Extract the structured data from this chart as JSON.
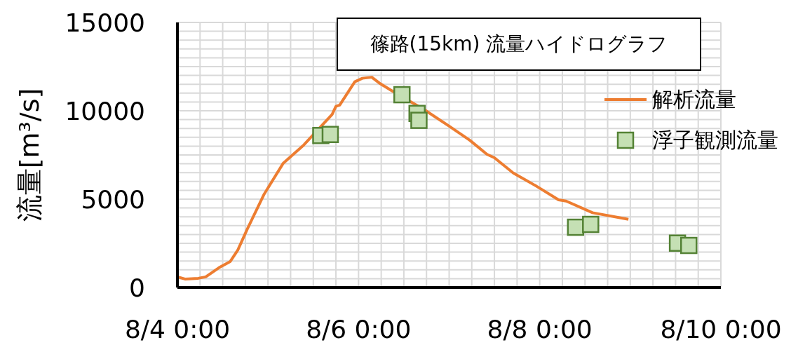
{
  "chart_data": {
    "type": "line",
    "title": "篠路(15km) 流量ハイドログラフ",
    "ylabel": "流量[m³/s]",
    "xlim": [
      "--08-04T00:00",
      "--08-10T00:00"
    ],
    "xticks": [
      {
        "value": "--08-04T00:00",
        "label": "8/4 0:00"
      },
      {
        "value": "--08-04T06:00",
        "label": null
      },
      {
        "value": "--08-04T12:00",
        "label": null
      },
      {
        "value": "--08-04T18:00",
        "label": null
      },
      {
        "value": "--08-05T00:00",
        "label": null
      },
      {
        "value": "--08-05T06:00",
        "label": null
      },
      {
        "value": "--08-05T12:00",
        "label": null
      },
      {
        "value": "--08-05T18:00",
        "label": null
      },
      {
        "value": "--08-06T00:00",
        "label": "8/6 0:00"
      },
      {
        "value": "--08-06T06:00",
        "label": null
      },
      {
        "value": "--08-06T12:00",
        "label": null
      },
      {
        "value": "--08-06T18:00",
        "label": null
      },
      {
        "value": "--08-07T00:00",
        "label": null
      },
      {
        "value": "--08-07T06:00",
        "label": null
      },
      {
        "value": "--08-07T12:00",
        "label": null
      },
      {
        "value": "--08-07T18:00",
        "label": null
      },
      {
        "value": "--08-08T00:00",
        "label": "8/8 0:00"
      },
      {
        "value": "--08-08T06:00",
        "label": null
      },
      {
        "value": "--08-08T12:00",
        "label": null
      },
      {
        "value": "--08-08T18:00",
        "label": null
      },
      {
        "value": "--08-09T00:00",
        "label": null
      },
      {
        "value": "--08-09T06:00",
        "label": null
      },
      {
        "value": "--08-09T12:00",
        "label": null
      },
      {
        "value": "--08-09T18:00",
        "label": null
      },
      {
        "value": "--08-10T00:00",
        "label": "8/10 0:00"
      }
    ],
    "ylim": [
      0,
      15000
    ],
    "yticks": [
      0,
      {
        "value": 500,
        "label": null
      },
      {
        "value": 1000,
        "label": null
      },
      {
        "value": 1500,
        "label": null
      },
      {
        "value": 2000,
        "label": null
      },
      {
        "value": 2500,
        "label": null
      },
      {
        "value": 3000,
        "label": null
      },
      {
        "value": 3500,
        "label": null
      },
      {
        "value": 4000,
        "label": null
      },
      {
        "value": 4500,
        "label": null
      },
      5000,
      {
        "value": 5500,
        "label": null
      },
      {
        "value": 6000,
        "label": null
      },
      {
        "value": 6500,
        "label": null
      },
      {
        "value": 7000,
        "label": null
      },
      {
        "value": 7500,
        "label": null
      },
      {
        "value": 8000,
        "label": null
      },
      {
        "value": 8500,
        "label": null
      },
      {
        "value": 9000,
        "label": null
      },
      {
        "value": 9500,
        "label": null
      },
      10000,
      {
        "value": 10500,
        "label": null
      },
      {
        "value": 11000,
        "label": null
      },
      {
        "value": 11500,
        "label": null
      },
      {
        "value": 12000,
        "label": null
      },
      {
        "value": 12500,
        "label": null
      },
      {
        "value": 13000,
        "label": null
      },
      {
        "value": 13500,
        "label": null
      },
      {
        "value": 14000,
        "label": null
      },
      {
        "value": 14500,
        "label": null
      },
      15000
    ],
    "grid": true,
    "legend": "top right",
    "series": [
      {
        "name": "解析流量",
        "color": "#ed7d31",
        "marker": "none",
        "line_style": "solid",
        "x": [
          "--08-04T00:00",
          "--08-04T02:00",
          "--08-04T05:30",
          "--08-04T07:30",
          "--08-04T11:00",
          "--08-04T14:00",
          "--08-04T16:00",
          "--08-04T18:30",
          "--08-04T23:00",
          "--08-05T04:00",
          "--08-05T09:30",
          "--08-05T17:00",
          "--08-05T18:00",
          "--08-05T19:00",
          "--08-05T23:00",
          "--08-06T01:00",
          "--08-06T03:30",
          "--08-06T05:30",
          "--08-06T09:00",
          "--08-06T17:30",
          "--08-07T00:00",
          "--08-07T05:30",
          "--08-07T10:00",
          "--08-07T12:00",
          "--08-07T17:00",
          "--08-07T23:00",
          "--08-08T00:00",
          "--08-08T05:00",
          "--08-08T07:00",
          "--08-08T14:00",
          "--08-08T23:30"
        ],
        "values": [
          600,
          480,
          520,
          600,
          1120,
          1470,
          2120,
          3300,
          5290,
          7020,
          8070,
          9800,
          10250,
          10320,
          11640,
          11840,
          11900,
          11570,
          11110,
          10050,
          9130,
          8330,
          7540,
          7340,
          6480,
          5750,
          5620,
          4960,
          4890,
          4230,
          3860
        ]
      },
      {
        "name": "浮子観測流量",
        "type": "scatter",
        "color": "#c5e0b4",
        "marker": "square",
        "x": [
          "--08-05T14:00",
          "--08-05T16:30",
          "--08-06T11:30",
          "--08-06T15:30",
          "--08-06T16:00",
          "--08-08T09:30",
          "--08-08T13:30",
          "--08-09T12:30",
          "--08-09T15:30"
        ],
        "values": [
          8600,
          8660,
          10910,
          9850,
          9460,
          3410,
          3570,
          2510,
          2380
        ]
      }
    ]
  }
}
